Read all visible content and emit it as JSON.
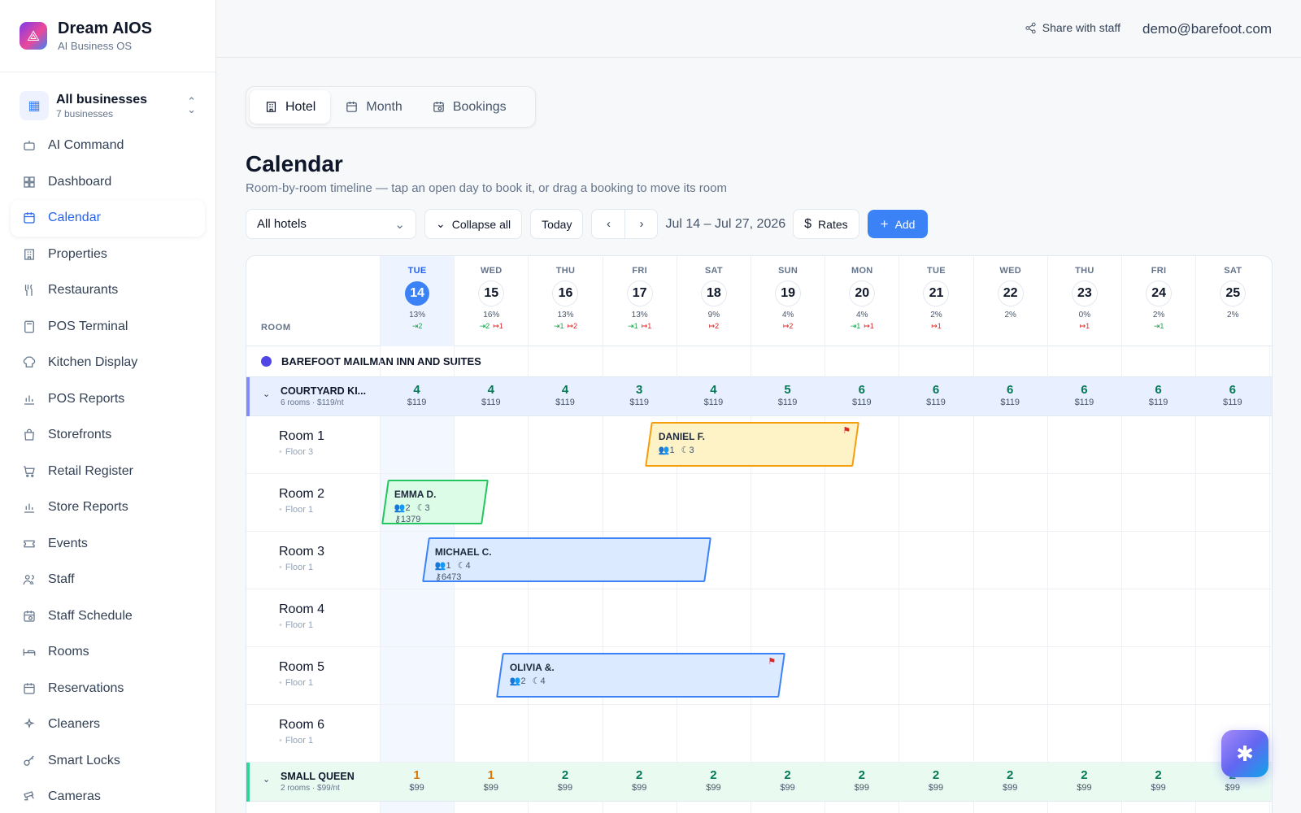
{
  "brand": {
    "name": "Dream AIOS",
    "subtitle": "AI Business OS"
  },
  "business": {
    "title": "All businesses",
    "subtitle": "7 businesses"
  },
  "nav": [
    {
      "label": "AI Command",
      "icon": "robot-icon"
    },
    {
      "label": "Dashboard",
      "icon": "grid-icon"
    },
    {
      "label": "Calendar",
      "icon": "calendar-icon",
      "active": true
    },
    {
      "label": "Properties",
      "icon": "building-icon"
    },
    {
      "label": "Restaurants",
      "icon": "utensils-icon"
    },
    {
      "label": "POS Terminal",
      "icon": "calculator-icon"
    },
    {
      "label": "Kitchen Display",
      "icon": "chef-hat-icon"
    },
    {
      "label": "POS Reports",
      "icon": "bar-chart-icon"
    },
    {
      "label": "Storefronts",
      "icon": "shopping-bag-icon"
    },
    {
      "label": "Retail Register",
      "icon": "cart-icon"
    },
    {
      "label": "Store Reports",
      "icon": "bar-chart-icon"
    },
    {
      "label": "Events",
      "icon": "ticket-icon"
    },
    {
      "label": "Staff",
      "icon": "users-icon"
    },
    {
      "label": "Staff Schedule",
      "icon": "calendar-clock-icon"
    },
    {
      "label": "Rooms",
      "icon": "bed-icon"
    },
    {
      "label": "Reservations",
      "icon": "calendar-icon"
    },
    {
      "label": "Cleaners",
      "icon": "sparkles-icon"
    },
    {
      "label": "Smart Locks",
      "icon": "key-icon"
    },
    {
      "label": "Cameras",
      "icon": "cctv-icon"
    }
  ],
  "topbar": {
    "share": "Share with staff",
    "email": "demo@barefoot.com"
  },
  "tabs": [
    {
      "label": "Hotel",
      "icon": "hotel-icon",
      "active": true
    },
    {
      "label": "Month",
      "icon": "calendar-icon"
    },
    {
      "label": "Bookings",
      "icon": "calendar-clock-icon"
    }
  ],
  "page": {
    "title": "Calendar",
    "subtitle": "Room-by-room timeline — tap an open day to book it, or drag a booking to move its room"
  },
  "controls": {
    "hotel_select": "All hotels",
    "collapse": "Collapse all",
    "today": "Today",
    "range": "Jul 14 – Jul 27, 2026",
    "rates": "Rates",
    "add": "Add"
  },
  "grid": {
    "room_header": "ROOM",
    "days": [
      {
        "name": "TUE",
        "num": "14",
        "occ": "13%",
        "in": "2",
        "out": "",
        "today": true
      },
      {
        "name": "WED",
        "num": "15",
        "occ": "16%",
        "in": "2",
        "out": "1"
      },
      {
        "name": "THU",
        "num": "16",
        "occ": "13%",
        "in": "1",
        "out": "2"
      },
      {
        "name": "FRI",
        "num": "17",
        "occ": "13%",
        "in": "1",
        "out": "1"
      },
      {
        "name": "SAT",
        "num": "18",
        "occ": "9%",
        "in": "",
        "out": "2"
      },
      {
        "name": "SUN",
        "num": "19",
        "occ": "4%",
        "in": "",
        "out": "2"
      },
      {
        "name": "MON",
        "num": "20",
        "occ": "4%",
        "in": "1",
        "out": "1"
      },
      {
        "name": "TUE",
        "num": "21",
        "occ": "2%",
        "in": "",
        "out": "1"
      },
      {
        "name": "WED",
        "num": "22",
        "occ": "2%",
        "in": "",
        "out": ""
      },
      {
        "name": "THU",
        "num": "23",
        "occ": "0%",
        "in": "",
        "out": "1"
      },
      {
        "name": "FRI",
        "num": "24",
        "occ": "2%",
        "in": "1",
        "out": ""
      },
      {
        "name": "SAT",
        "num": "25",
        "occ": "2%",
        "in": "",
        "out": ""
      }
    ],
    "property": "BAREFOOT MAILMAN INN AND SUITES",
    "groups": [
      {
        "title": "COURTYARD KI...",
        "sub": "6 rooms · $119/nt",
        "color": "#e8efff",
        "bar": "#818cf8",
        "avail": [
          "4",
          "4",
          "4",
          "3",
          "4",
          "5",
          "6",
          "6",
          "6",
          "6",
          "6",
          "6"
        ],
        "prices": [
          "$119",
          "$119",
          "$119",
          "$119",
          "$119",
          "$119",
          "$119",
          "$119",
          "$119",
          "$119",
          "$119",
          "$119"
        ],
        "rooms": [
          {
            "name": "Room 1",
            "floor": "Floor 3"
          },
          {
            "name": "Room 2",
            "floor": "Floor 1"
          },
          {
            "name": "Room 3",
            "floor": "Floor 1"
          },
          {
            "name": "Room 4",
            "floor": "Floor 1"
          },
          {
            "name": "Room 5",
            "floor": "Floor 1"
          },
          {
            "name": "Room 6",
            "floor": "Floor 1"
          }
        ]
      },
      {
        "title": "SMALL QUEEN",
        "sub": "2 rooms · $99/nt",
        "color": "#e9fbf1",
        "bar": "#34d399",
        "avail": [
          "1",
          "1",
          "2",
          "2",
          "2",
          "2",
          "2",
          "2",
          "2",
          "2",
          "2",
          "2"
        ],
        "prices": [
          "$99",
          "$99",
          "$99",
          "$99",
          "$99",
          "$99",
          "$99",
          "$99",
          "$99",
          "$99",
          "$99",
          "$99"
        ],
        "rooms": []
      }
    ],
    "bookings": [
      {
        "guest": "DANIEL F.",
        "guests": "1",
        "nights": "3",
        "code": "",
        "room": 0,
        "start": 3.55,
        "end": 6.45,
        "fill": "#fef3c7",
        "border": "#f59e0b",
        "flag": true
      },
      {
        "guest": "EMMA D.",
        "guests": "2",
        "nights": "3",
        "code": "1379",
        "room": 1,
        "start": 0,
        "end": 1.45,
        "fill": "#dcfce7",
        "border": "#22c55e",
        "flag": false
      },
      {
        "guest": "MICHAEL C.",
        "guests": "1",
        "nights": "4",
        "code": "6473",
        "room": 2,
        "start": 0.55,
        "end": 4.45,
        "fill": "#dbeafe",
        "border": "#3b82f6",
        "flag": false
      },
      {
        "guest": "OLIVIA &.",
        "guests": "2",
        "nights": "4",
        "code": "",
        "room": 4,
        "start": 1.55,
        "end": 5.45,
        "fill": "#dbeafe",
        "border": "#3b82f6",
        "flag": true
      }
    ]
  }
}
